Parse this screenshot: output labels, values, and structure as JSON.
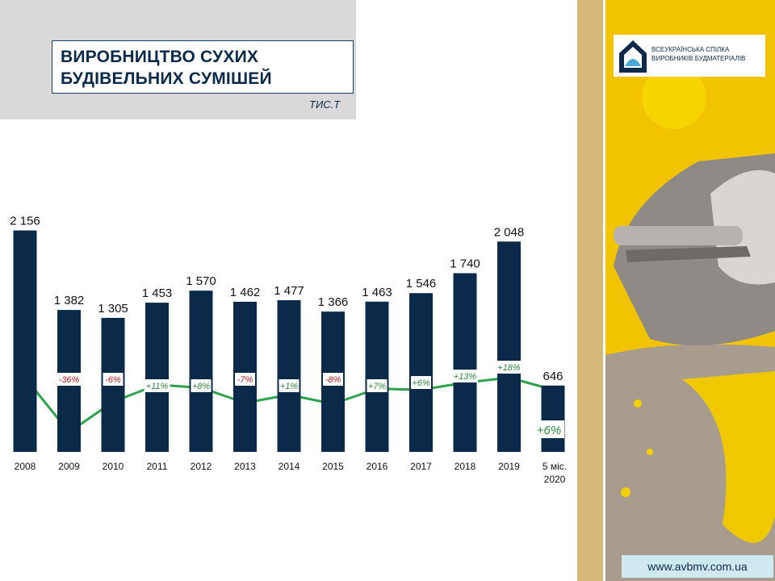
{
  "header": {
    "title_line1": "ВИРОБНИЦТВО СУХИХ",
    "title_line2": "БУДІВЕЛЬНИХ СУМІШЕЙ",
    "unit": "ТИС.Т"
  },
  "logo": {
    "line1": "ВСЕУКРАЇНСЬКА СПІЛКА",
    "line2": "ВИРОБНИКІВ БУДМАТЕРІАЛІВ"
  },
  "footer": {
    "url": "www.avbmv.com.ua"
  },
  "colors": {
    "bar": "#0b2a4a",
    "line": "#2ca24c",
    "positive": "#2c8a3c",
    "negative": "#b02020",
    "accent_yellow": "#f2c300"
  },
  "chart_data": {
    "type": "bar",
    "categories": [
      "2008",
      "2009",
      "2010",
      "2011",
      "2012",
      "2013",
      "2014",
      "2015",
      "2016",
      "2017",
      "2018",
      "2019",
      "5 міс. 2020"
    ],
    "values": [
      2156,
      1382,
      1305,
      1453,
      1570,
      1462,
      1477,
      1366,
      1463,
      1546,
      1740,
      2048,
      646
    ],
    "value_labels": [
      "2 156",
      "1 382",
      "1 305",
      "1 453",
      "1 570",
      "1 462",
      "1 477",
      "1 366",
      "1 463",
      "1 546",
      "1 740",
      "2 048",
      "646"
    ],
    "growth": {
      "type": "line",
      "labels": [
        "",
        "-36%",
        "-6%",
        "+11%",
        "+8%",
        "-7%",
        "+1%",
        "-8%",
        "+7%",
        "+6%",
        "+13%",
        "+18%",
        "+6%"
      ],
      "values": [
        null,
        -36,
        -6,
        11,
        8,
        -7,
        1,
        -8,
        7,
        6,
        13,
        18,
        6
      ]
    },
    "title": "ВИРОБНИЦТВО СУХИХ БУДІВЕЛЬНИХ СУМІШЕЙ",
    "ylabel": "ТИС.Т",
    "ylim": [
      0,
      2200
    ],
    "grid": false,
    "legend": "none"
  }
}
